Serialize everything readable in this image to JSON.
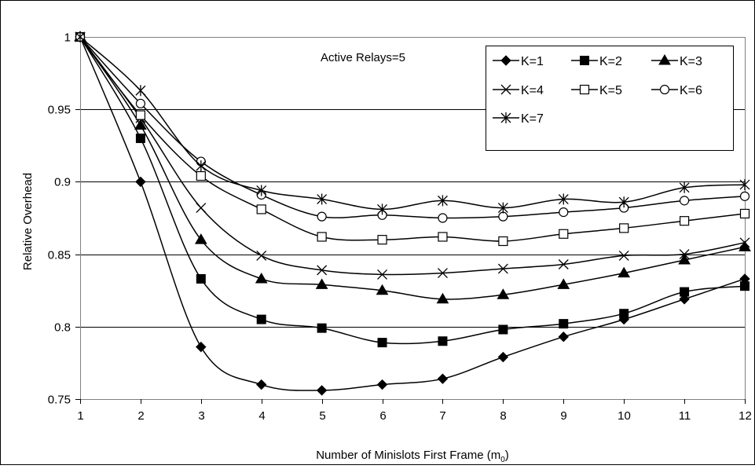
{
  "chart_data": {
    "type": "line",
    "title": "",
    "annotation": "Active Relays=5",
    "xlabel": "Number of Minislots First Frame (m",
    "xlabel_subscript": "0",
    "xlabel_suffix": ")",
    "ylabel": "Relative Overhead",
    "xlim": [
      1,
      12
    ],
    "ylim": [
      0.75,
      1.0
    ],
    "x": [
      1,
      2,
      3,
      4,
      5,
      6,
      7,
      8,
      9,
      10,
      11,
      12
    ],
    "x_tick_labels": [
      "1",
      "2",
      "3",
      "4",
      "5",
      "6",
      "7",
      "8",
      "9",
      "10",
      "11",
      "12"
    ],
    "y_ticks": [
      0.75,
      0.8,
      0.85,
      0.9,
      0.95,
      1.0
    ],
    "y_tick_labels": [
      "0.75",
      "0.8",
      "0.85",
      "0.9",
      "0.95",
      "1"
    ],
    "grid": "horizontal",
    "legend_position": "top-right",
    "series": [
      {
        "name": "K=1",
        "marker": "diamond-filled",
        "values": [
          1.0,
          0.9,
          0.786,
          0.76,
          0.756,
          0.76,
          0.764,
          0.779,
          0.793,
          0.805,
          0.819,
          0.833
        ]
      },
      {
        "name": "K=2",
        "marker": "square-filled",
        "values": [
          1.0,
          0.93,
          0.833,
          0.805,
          0.799,
          0.789,
          0.79,
          0.798,
          0.802,
          0.809,
          0.824,
          0.828
        ]
      },
      {
        "name": "K=3",
        "marker": "triangle-filled",
        "values": [
          1.0,
          0.939,
          0.86,
          0.833,
          0.829,
          0.825,
          0.819,
          0.822,
          0.829,
          0.837,
          0.846,
          0.855
        ]
      },
      {
        "name": "K=4",
        "marker": "x",
        "values": [
          1.0,
          0.944,
          0.882,
          0.849,
          0.839,
          0.836,
          0.837,
          0.84,
          0.843,
          0.849,
          0.85,
          0.858
        ]
      },
      {
        "name": "K=5",
        "marker": "square-open",
        "values": [
          1.0,
          0.946,
          0.904,
          0.881,
          0.862,
          0.86,
          0.862,
          0.859,
          0.864,
          0.868,
          0.873,
          0.878
        ]
      },
      {
        "name": "K=6",
        "marker": "circle-open",
        "values": [
          1.0,
          0.954,
          0.914,
          0.891,
          0.876,
          0.877,
          0.875,
          0.876,
          0.879,
          0.882,
          0.887,
          0.89
        ]
      },
      {
        "name": "K=7",
        "marker": "star",
        "values": [
          1.0,
          0.963,
          0.911,
          0.894,
          0.888,
          0.881,
          0.887,
          0.882,
          0.888,
          0.886,
          0.896,
          0.898
        ]
      }
    ]
  }
}
